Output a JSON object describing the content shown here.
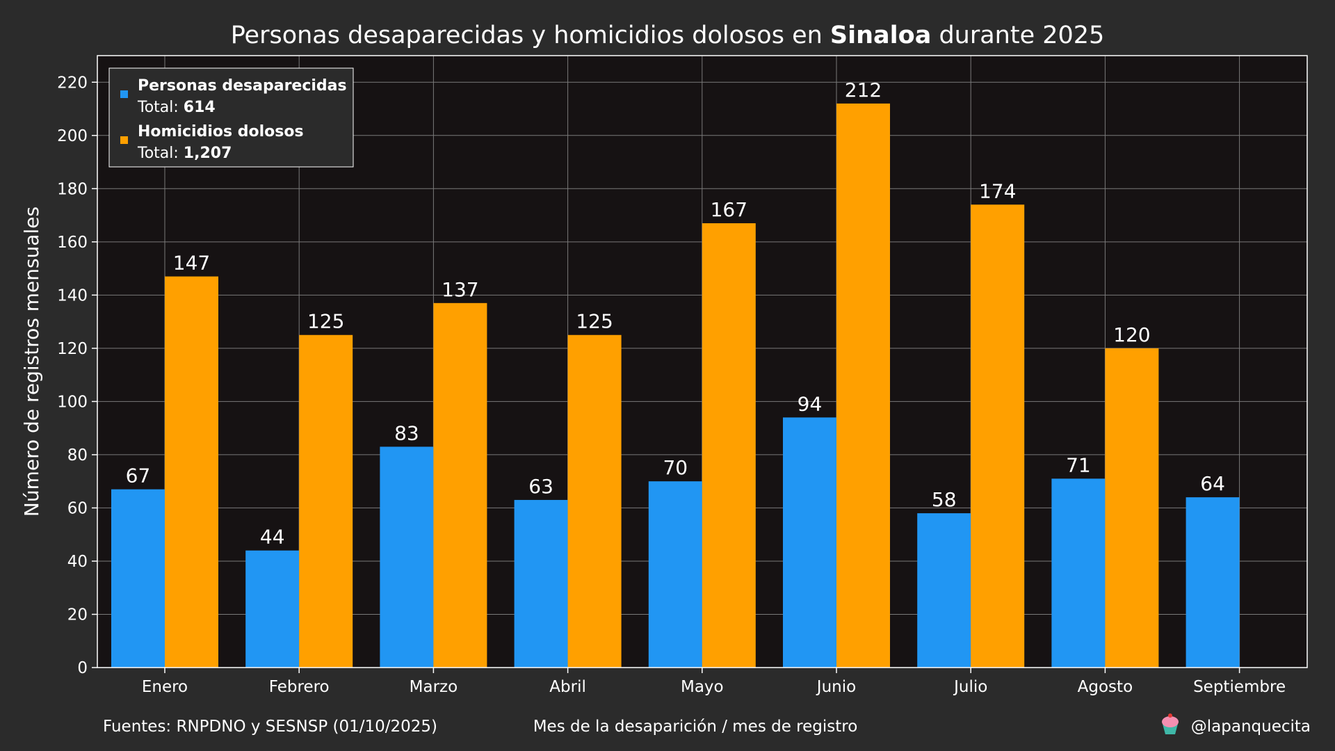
{
  "title": {
    "prefix": "Personas desaparecidas y homicidios dolosos en ",
    "emphasis": "Sinaloa",
    "suffix": " durante 2025"
  },
  "footer": {
    "sources": "Fuentes: RNPDNO y SESNSP (01/10/2025)",
    "handle": "@lapanquecita",
    "handle_icon": "cupcake-icon"
  },
  "legend": {
    "total_label": "Total: ",
    "entries": [
      {
        "name": "Personas desaparecidas",
        "total": "614"
      },
      {
        "name": "Homicidios dolosos",
        "total": "1,207"
      }
    ]
  },
  "colors": {
    "background": "#2b2b2b",
    "plot_background": "#161213",
    "grid": "#7a7a7a",
    "desaparecidas": "#2196f3",
    "homicidios": "#ffa000"
  },
  "chart_data": {
    "type": "bar",
    "title": "Personas desaparecidas y homicidios dolosos en Sinaloa durante 2025",
    "xlabel": "Mes de la desaparición / mes de registro",
    "ylabel": "Número de registros mensuales",
    "ylim": [
      0,
      230
    ],
    "yticks": [
      0,
      20,
      40,
      60,
      80,
      100,
      120,
      140,
      160,
      180,
      200,
      220
    ],
    "grid": true,
    "legend_position": "top-left",
    "categories": [
      "Enero",
      "Febrero",
      "Marzo",
      "Abril",
      "Mayo",
      "Junio",
      "Julio",
      "Agosto",
      "Septiembre"
    ],
    "series": [
      {
        "name": "Personas desaparecidas",
        "values": [
          67,
          44,
          83,
          63,
          70,
          94,
          58,
          71,
          64
        ]
      },
      {
        "name": "Homicidios dolosos",
        "values": [
          147,
          125,
          137,
          125,
          167,
          212,
          174,
          120,
          null
        ]
      }
    ]
  }
}
